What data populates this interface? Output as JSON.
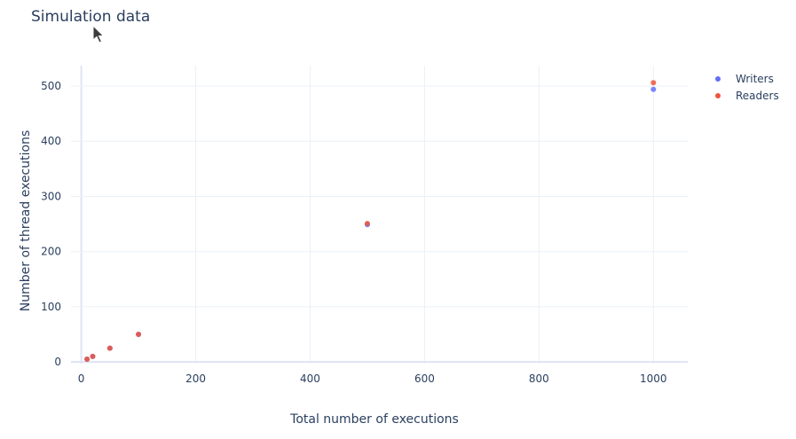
{
  "chart_data": {
    "type": "scatter",
    "title": "Simulation data",
    "xlabel": "Total number of executions",
    "ylabel": "Number of thread executions",
    "xlim": [
      -18,
      1060
    ],
    "ylim": [
      -3,
      537
    ],
    "x_ticks": [
      0,
      200,
      400,
      600,
      800,
      1000
    ],
    "y_ticks": [
      0,
      100,
      200,
      300,
      400,
      500
    ],
    "grid": true,
    "legend_position": "top-right",
    "series": [
      {
        "name": "Writers",
        "color": "#636efa",
        "points": [
          [
            10,
            5
          ],
          [
            20,
            10
          ],
          [
            50,
            25
          ],
          [
            100,
            50
          ],
          [
            500,
            249
          ],
          [
            1000,
            494
          ]
        ]
      },
      {
        "name": "Readers",
        "color": "#ef553b",
        "points": [
          [
            10,
            5
          ],
          [
            20,
            10
          ],
          [
            50,
            25
          ],
          [
            100,
            50
          ],
          [
            500,
            251
          ],
          [
            1000,
            506
          ]
        ]
      }
    ]
  },
  "cursor_icon": "arrow-cursor-icon"
}
